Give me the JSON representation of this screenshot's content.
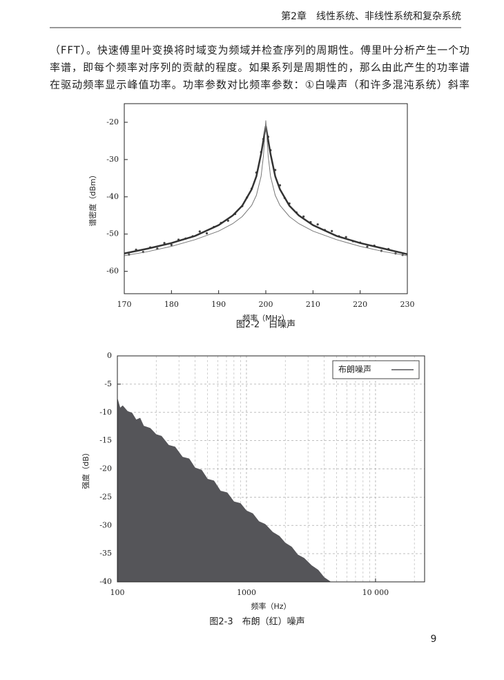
{
  "header": {
    "title": "第2章　线性系统、非线性系统和复杂系统"
  },
  "paragraph": [
    "（FFT）。快速傅里叶变换将时域变为频域并检查序列的周期性。傅里叶分析产生一个功",
    "率谱，即每个频率对序列的贡献的程度。如果系列是周期性的，那么由此产生的功率谱",
    "在驱动频率显示峰值功率。功率参数对比频率参数：①白噪声（和许多混沌系统）斜率"
  ],
  "chart_data": [
    {
      "type": "scatter",
      "caption": "图2-2　白噪声",
      "xlabel": "频率（MHz）",
      "ylabel": "谱密度（dBm）",
      "xlim": [
        170,
        230
      ],
      "ylim": [
        -66,
        -15
      ],
      "xticks": [
        170,
        180,
        190,
        200,
        210,
        220,
        230
      ],
      "yticks": [
        -20,
        -30,
        -40,
        -50,
        -60
      ],
      "series": [
        {
          "mode": "points",
          "color": "#444444",
          "x": [
            171,
            172.5,
            174,
            175.5,
            177,
            178.5,
            180,
            181.5,
            183,
            184.5,
            186,
            187.5,
            189,
            190.5,
            192,
            193.5,
            195,
            196,
            197,
            198,
            199,
            199.5,
            200,
            200.5,
            201,
            202,
            203,
            204,
            205,
            206.5,
            208,
            209.5,
            211,
            212.5,
            214,
            215.5,
            217,
            218.5,
            220,
            221.5,
            223,
            224.5,
            226,
            227.5,
            229
          ],
          "values": [
            -55.5,
            -54.2,
            -54.8,
            -53.6,
            -53.9,
            -52.4,
            -52.9,
            -51.5,
            -51.2,
            -50.6,
            -49.3,
            -49.8,
            -48.1,
            -47.0,
            -46.4,
            -44.6,
            -42.5,
            -40.2,
            -37.8,
            -33.5,
            -28.0,
            -24.5,
            -21.5,
            -23.9,
            -27.5,
            -32.8,
            -36.9,
            -40.3,
            -41.8,
            -44.2,
            -45.3,
            -46.8,
            -47.4,
            -48.9,
            -49.2,
            -50.6,
            -50.8,
            -51.9,
            -52.3,
            -53.4,
            -53.1,
            -54.5,
            -54.0,
            -55.2,
            -55.6
          ]
        },
        {
          "mode": "line",
          "width": 2.5,
          "color": "#333333",
          "x": [
            170,
            175,
            180,
            185,
            190,
            193,
            195,
            197,
            198,
            199,
            200,
            201,
            202,
            203,
            205,
            207,
            210,
            215,
            220,
            225,
            230
          ],
          "values": [
            -55.2,
            -53.9,
            -52.4,
            -50.5,
            -47.6,
            -45,
            -42.4,
            -38,
            -34.5,
            -28.5,
            -21,
            -28.5,
            -34.5,
            -38,
            -42.4,
            -45,
            -47.6,
            -50.5,
            -52.4,
            -53.9,
            -55.4
          ]
        },
        {
          "mode": "line",
          "width": 1,
          "color": "#777777",
          "x": [
            170,
            175,
            180,
            185,
            190,
            193,
            195,
            197,
            198,
            199,
            199.5,
            200,
            200.5,
            201,
            202,
            203,
            205,
            207,
            210,
            215,
            220,
            225,
            230
          ],
          "values": [
            -55.8,
            -54.7,
            -53.3,
            -51.5,
            -49.2,
            -47.2,
            -45.3,
            -42.3,
            -39.6,
            -34.5,
            -29,
            -19.5,
            -29,
            -34.5,
            -39.6,
            -42.3,
            -45.3,
            -47.2,
            -49.2,
            -51.5,
            -53.3,
            -54.7,
            -55.8
          ]
        }
      ]
    },
    {
      "type": "area",
      "caption": "图2-3　布朗（红）噪声",
      "xlabel": "频率（Hz）",
      "ylabel": "强度（dB）",
      "log_x": true,
      "grid": true,
      "legend": "upper right",
      "xlim": [
        100,
        24000
      ],
      "ylim": [
        -40,
        0
      ],
      "xticks": [
        100,
        1000,
        {
          "value": 10000,
          "label": "10 000"
        }
      ],
      "yticks": [
        0,
        -5,
        -10,
        -15,
        -20,
        -25,
        -30,
        -35,
        -40
      ],
      "series": [
        {
          "name": "布朗噪声",
          "color": "#555559",
          "x": [
            100,
            105,
            110,
            120,
            130,
            140,
            150,
            160,
            180,
            200,
            220,
            250,
            280,
            320,
            360,
            400,
            450,
            500,
            560,
            630,
            710,
            800,
            900,
            1000,
            1120,
            1250,
            1400,
            1600,
            1800,
            2000,
            2240,
            2500,
            2800,
            3200,
            3600,
            4000,
            4500
          ],
          "values": [
            -7.5,
            -9.2,
            -8.8,
            -9.8,
            -10.1,
            -11.3,
            -11.0,
            -12.4,
            -12.8,
            -13.9,
            -14.2,
            -15.8,
            -16.1,
            -17.9,
            -18.2,
            -19.8,
            -20.2,
            -21.8,
            -22.1,
            -23.9,
            -24.2,
            -25.8,
            -26.1,
            -27.4,
            -27.9,
            -29.3,
            -29.8,
            -31.2,
            -31.9,
            -33.1,
            -33.8,
            -35.2,
            -35.8,
            -37.1,
            -37.9,
            -39.2,
            -40
          ]
        }
      ]
    }
  ],
  "page_number": "9"
}
